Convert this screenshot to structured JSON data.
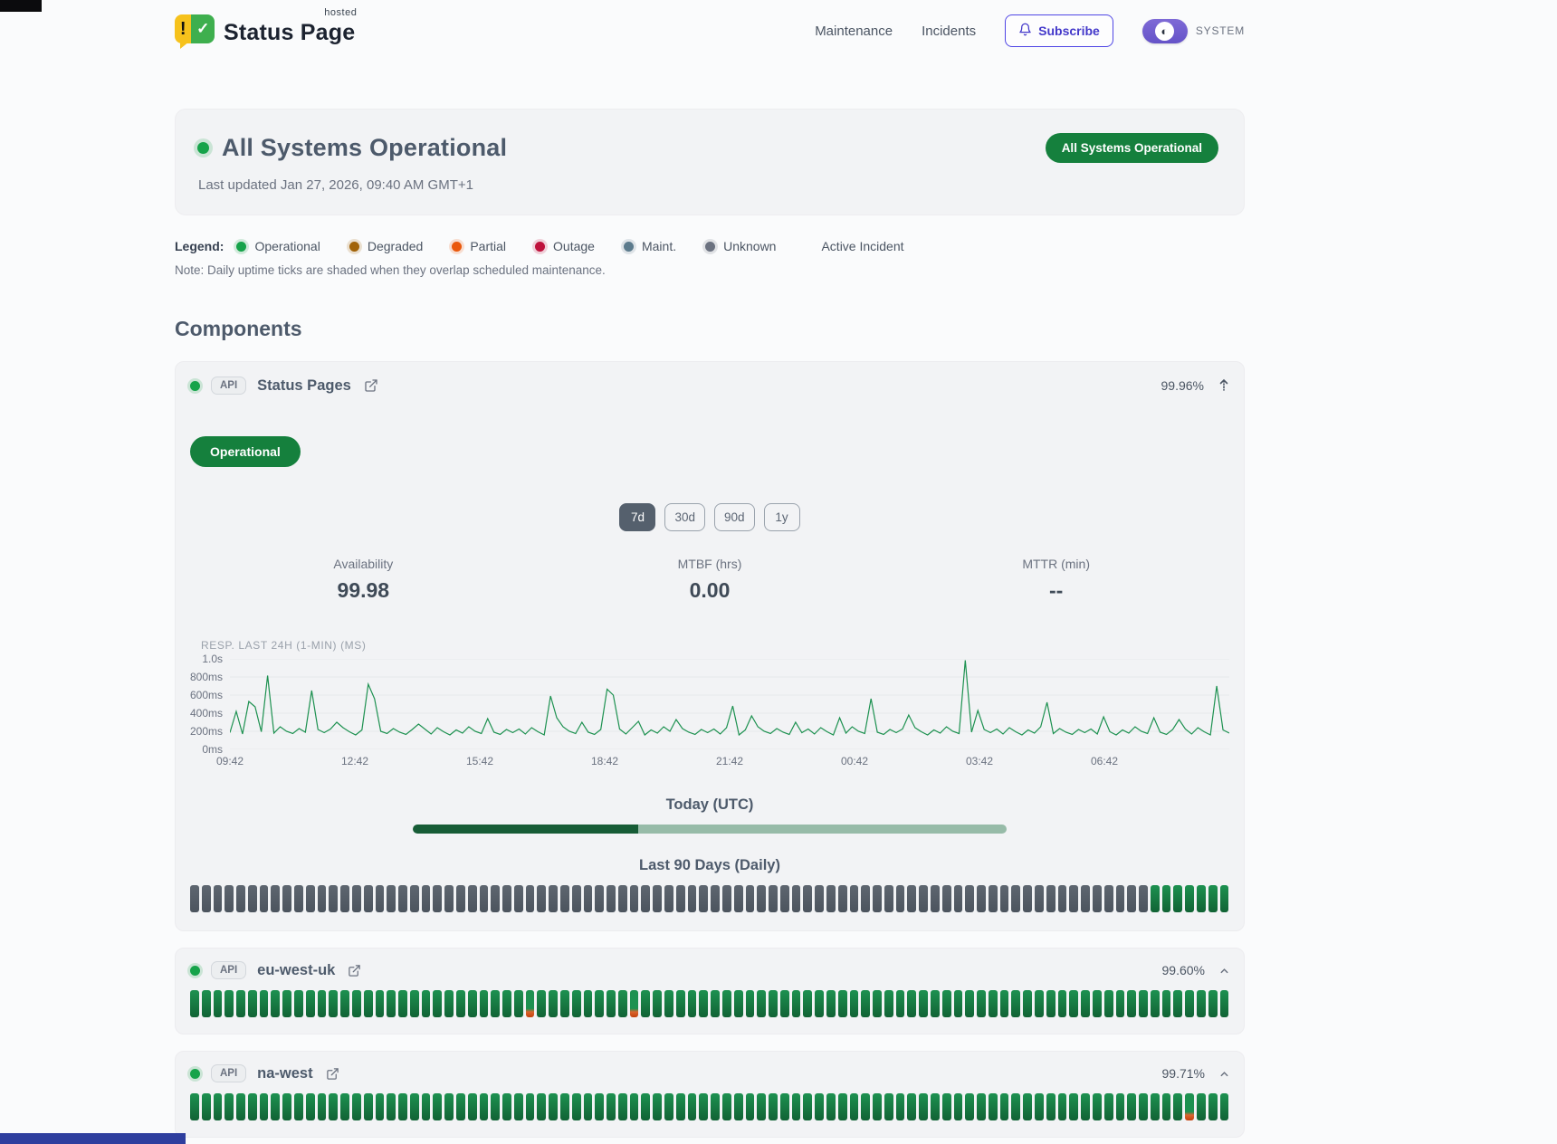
{
  "header": {
    "brand": {
      "name": "Status Page",
      "superscript": "hosted",
      "logo_exclaim": "!",
      "logo_check": "✓"
    },
    "nav": [
      {
        "label": "Maintenance"
      },
      {
        "label": "Incidents"
      }
    ],
    "subscribe_label": "Subscribe",
    "theme_label": "SYSTEM",
    "theme_icon": "◐"
  },
  "hero": {
    "title": "All Systems Operational",
    "last_updated": "Last updated Jan 27, 2026, 09:40 AM GMT+1",
    "badge": "All Systems Operational"
  },
  "legend": {
    "label": "Legend:",
    "items": [
      {
        "label": "Operational",
        "color": "#16a34a"
      },
      {
        "label": "Degraded",
        "color": "#a16207"
      },
      {
        "label": "Partial",
        "color": "#ea580c"
      },
      {
        "label": "Outage",
        "color": "#be123c"
      },
      {
        "label": "Maint.",
        "color": "#5c7b8d"
      },
      {
        "label": "Unknown",
        "color": "#6b7280"
      }
    ],
    "active_incident_label": "Active Incident",
    "note": "Note: Daily uptime ticks are shaded when they overlap scheduled maintenance."
  },
  "components_section": {
    "heading": "Components",
    "components": [
      {
        "badge": "API",
        "name": "Status Pages",
        "uptime": "99.96%",
        "status_label": "Operational",
        "expanded": true,
        "ranges": [
          "7d",
          "30d",
          "90d",
          "1y"
        ],
        "active_range": "7d",
        "stats": [
          {
            "label": "Availability",
            "value": "99.98"
          },
          {
            "label": "MTBF (hrs)",
            "value": "0.00"
          },
          {
            "label": "MTTR (min)",
            "value": "--"
          }
        ],
        "today_heading": "Today (UTC)",
        "today_progress_pct": 38,
        "history_heading": "Last 90 Days (Daily)",
        "history": [
          {
            "status": "unknown",
            "count": 83
          },
          {
            "status": "operational",
            "count": 7
          }
        ]
      },
      {
        "badge": "API",
        "name": "eu-west-uk",
        "uptime": "99.60%",
        "expanded": false,
        "history": [
          {
            "status": "operational",
            "count": 29
          },
          {
            "status": "partial",
            "count": 1
          },
          {
            "status": "operational",
            "count": 8
          },
          {
            "status": "partial",
            "count": 1
          },
          {
            "status": "operational",
            "count": 51
          }
        ]
      },
      {
        "badge": "API",
        "name": "na-west",
        "uptime": "99.71%",
        "expanded": false,
        "history": [
          {
            "status": "operational",
            "count": 86
          },
          {
            "status": "partial",
            "count": 1
          },
          {
            "status": "operational",
            "count": 3
          }
        ]
      }
    ]
  },
  "chart_data": {
    "type": "line",
    "title": "RESP. LAST 24H (1-MIN) (MS)",
    "x_ticks": [
      "09:42",
      "12:42",
      "15:42",
      "18:42",
      "21:42",
      "00:42",
      "03:42",
      "06:42"
    ],
    "y_ticks": [
      "1.0s",
      "800ms",
      "600ms",
      "400ms",
      "200ms",
      "0ms"
    ],
    "ylim": [
      0,
      1000
    ],
    "unit": "ms",
    "line_color": "#1d9150",
    "grid": true,
    "values": [
      185,
      420,
      170,
      530,
      470,
      195,
      815,
      180,
      250,
      200,
      175,
      230,
      190,
      650,
      220,
      185,
      225,
      300,
      240,
      195,
      160,
      215,
      720,
      560,
      200,
      175,
      230,
      190,
      165,
      220,
      280,
      225,
      170,
      240,
      195,
      160,
      215,
      180,
      250,
      200,
      175,
      340,
      190,
      165,
      220,
      185,
      225,
      170,
      240,
      195,
      160,
      590,
      350,
      250,
      200,
      175,
      300,
      190,
      165,
      220,
      665,
      600,
      225,
      170,
      240,
      310,
      160,
      215,
      180,
      250,
      200,
      330,
      230,
      190,
      165,
      220,
      185,
      225,
      170,
      240,
      480,
      160,
      215,
      370,
      250,
      200,
      175,
      230,
      190,
      165,
      300,
      185,
      225,
      170,
      240,
      195,
      160,
      350,
      180,
      250,
      200,
      175,
      560,
      190,
      165,
      220,
      185,
      225,
      380,
      240,
      195,
      160,
      215,
      180,
      250,
      200,
      175,
      985,
      190,
      430,
      220,
      185,
      225,
      170,
      240,
      195,
      160,
      215,
      180,
      250,
      520,
      175,
      230,
      190,
      165,
      220,
      185,
      225,
      170,
      360,
      195,
      160,
      215,
      180,
      250,
      200,
      175,
      350,
      190,
      165,
      220,
      330,
      225,
      170,
      240,
      195,
      160,
      700,
      215,
      180
    ]
  }
}
